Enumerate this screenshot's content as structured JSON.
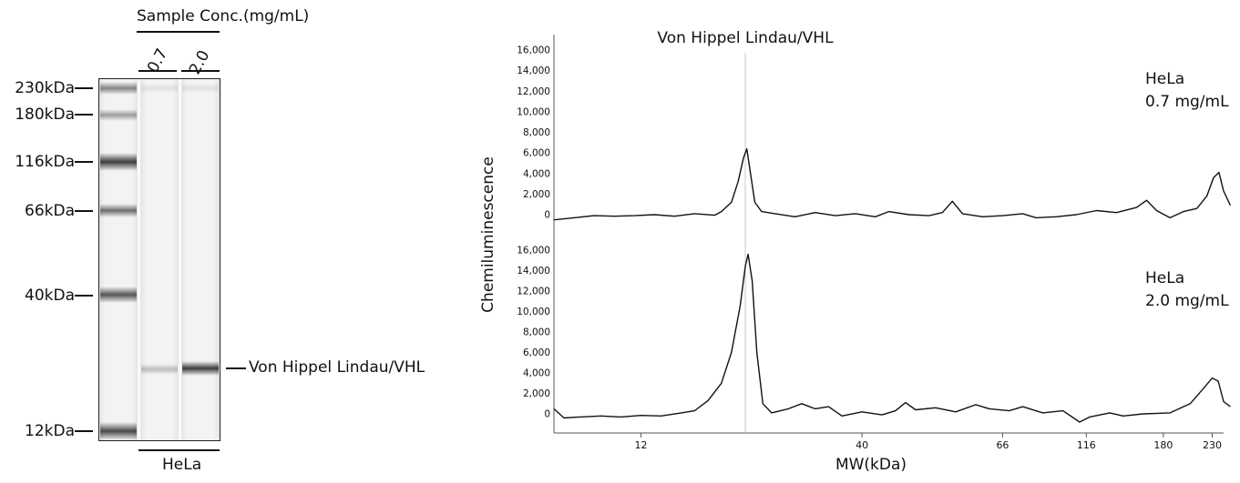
{
  "gel": {
    "title": "Sample Conc.(mg/mL)",
    "lanes": [
      "0.7",
      "2.0"
    ],
    "sample": "HeLa",
    "target_label": "Von Hippel Lindau/VHL",
    "markers": [
      {
        "label": "230kDa"
      },
      {
        "label": "180kDa"
      },
      {
        "label": "116kDa"
      },
      {
        "label": "66kDa"
      },
      {
        "label": "40kDa"
      },
      {
        "label": "12kDa"
      }
    ]
  },
  "chart_data": {
    "type": "line",
    "title": "Von Hippel Lindau/VHL",
    "xlabel": "MW(kDa)",
    "ylabel": "Chemiluminescence",
    "x_ticks": [
      "12",
      "40",
      "66",
      "116",
      "180",
      "230"
    ],
    "y_ticks": [
      "0",
      "2,000",
      "4,000",
      "6,000",
      "8,000",
      "10,000",
      "12,000",
      "14,000",
      "16,000"
    ],
    "ylim": [
      0,
      16000
    ],
    "panels": [
      {
        "name": "HeLa 0.7 mg/mL",
        "label_line1": "HeLa",
        "label_line2": "0.7 mg/mL",
        "y_by_x_pct": [
          [
            0,
            -500
          ],
          [
            3,
            -300
          ],
          [
            6,
            -100
          ],
          [
            9,
            -150
          ],
          [
            12,
            -100
          ],
          [
            15,
            0
          ],
          [
            18,
            -150
          ],
          [
            21,
            100
          ],
          [
            24,
            -50
          ],
          [
            25,
            300
          ],
          [
            26.5,
            1200
          ],
          [
            27.5,
            3200
          ],
          [
            28.3,
            5500
          ],
          [
            28.8,
            6400
          ],
          [
            29.3,
            4200
          ],
          [
            30,
            1200
          ],
          [
            31,
            300
          ],
          [
            33,
            100
          ],
          [
            36,
            -200
          ],
          [
            39,
            200
          ],
          [
            42,
            -100
          ],
          [
            45,
            100
          ],
          [
            48,
            -200
          ],
          [
            50,
            300
          ],
          [
            53,
            0
          ],
          [
            56,
            -100
          ],
          [
            58,
            200
          ],
          [
            59.5,
            1300
          ],
          [
            61,
            100
          ],
          [
            64,
            -200
          ],
          [
            67,
            -100
          ],
          [
            70,
            100
          ],
          [
            72,
            -300
          ],
          [
            75,
            -200
          ],
          [
            78,
            0
          ],
          [
            81,
            400
          ],
          [
            84,
            200
          ],
          [
            87,
            700
          ],
          [
            88.5,
            1400
          ],
          [
            90,
            400
          ],
          [
            92,
            -300
          ],
          [
            94,
            300
          ],
          [
            96,
            600
          ],
          [
            97.5,
            1800
          ],
          [
            98.5,
            3600
          ],
          [
            99.3,
            4100
          ],
          [
            100,
            2300
          ],
          [
            101,
            900
          ]
        ]
      },
      {
        "name": "HeLa 2.0 mg/mL",
        "label_line1": "HeLa",
        "label_line2": "2.0 mg/mL",
        "y_by_x_pct": [
          [
            0,
            500
          ],
          [
            1.5,
            -400
          ],
          [
            4,
            -300
          ],
          [
            7,
            -200
          ],
          [
            10,
            -300
          ],
          [
            13,
            -150
          ],
          [
            16,
            -200
          ],
          [
            19,
            100
          ],
          [
            21,
            300
          ],
          [
            23,
            1300
          ],
          [
            25,
            3000
          ],
          [
            26.5,
            6000
          ],
          [
            27.8,
            10500
          ],
          [
            28.6,
            14500
          ],
          [
            29,
            15600
          ],
          [
            29.6,
            13000
          ],
          [
            30.3,
            6000
          ],
          [
            31.2,
            1000
          ],
          [
            32.5,
            100
          ],
          [
            35,
            500
          ],
          [
            37,
            1000
          ],
          [
            39,
            500
          ],
          [
            41,
            700
          ],
          [
            43,
            -200
          ],
          [
            46,
            200
          ],
          [
            49,
            -100
          ],
          [
            51,
            300
          ],
          [
            52.5,
            1100
          ],
          [
            54,
            400
          ],
          [
            57,
            600
          ],
          [
            60,
            200
          ],
          [
            63,
            900
          ],
          [
            65,
            500
          ],
          [
            68,
            300
          ],
          [
            70,
            700
          ],
          [
            73,
            100
          ],
          [
            76,
            300
          ],
          [
            78.5,
            -800
          ],
          [
            80,
            -300
          ],
          [
            83,
            100
          ],
          [
            85,
            -200
          ],
          [
            88,
            0
          ],
          [
            92,
            100
          ],
          [
            95,
            1000
          ],
          [
            97,
            2500
          ],
          [
            98.3,
            3500
          ],
          [
            99.2,
            3200
          ],
          [
            100,
            1200
          ],
          [
            101,
            700
          ]
        ]
      }
    ]
  }
}
